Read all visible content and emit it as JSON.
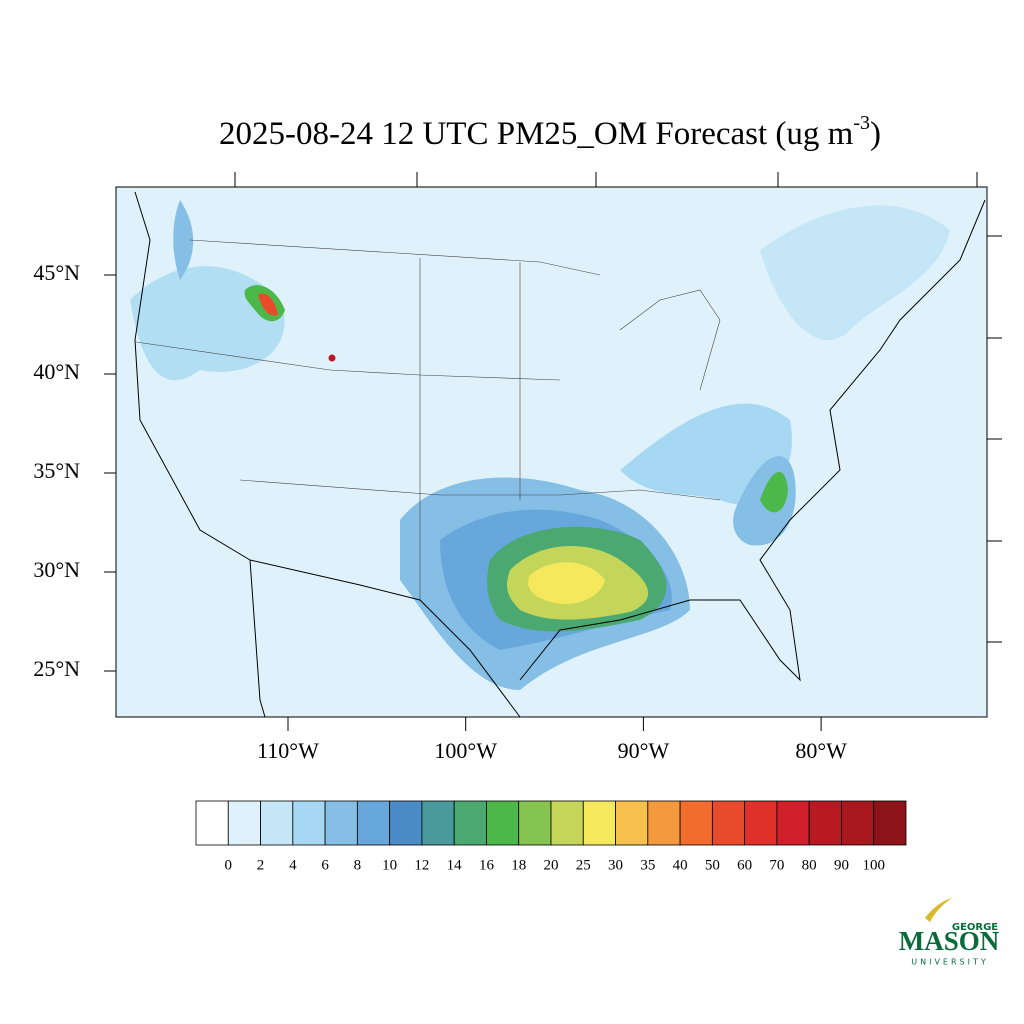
{
  "map": {
    "title": {
      "main": "2025-08-24 12 UTC PM25_OM Forecast (ug m",
      "superscript": "-3",
      "end": ")"
    },
    "lat_labels": [
      {
        "value": 45,
        "label": "45°N"
      },
      {
        "value": 40,
        "label": "40°N"
      },
      {
        "value": 35,
        "label": "35°N"
      },
      {
        "value": 30,
        "label": "30°N"
      },
      {
        "value": 25,
        "label": "25°N"
      }
    ],
    "lon_labels": [
      {
        "value": -110,
        "label": "110°W"
      },
      {
        "value": -100,
        "label": "100°W"
      },
      {
        "value": -90,
        "label": "90°W"
      },
      {
        "value": -80,
        "label": "80°W"
      }
    ],
    "colorbar": {
      "levels": [
        0,
        2,
        4,
        6,
        8,
        10,
        12,
        14,
        16,
        18,
        20,
        25,
        30,
        35,
        40,
        50,
        60,
        70,
        80,
        90,
        100
      ],
      "colors": [
        "#ffffff",
        "#dff2fb",
        "#c4e6f7",
        "#a6d8f3",
        "#86bfe6",
        "#68a7db",
        "#4a8bc8",
        "#4a9a9c",
        "#4aa870",
        "#4cb84a",
        "#86c450",
        "#c4d65a",
        "#f5e85c",
        "#f8c04c",
        "#f59a3c",
        "#f26c2c",
        "#e84a2c",
        "#e0302a",
        "#d01e2a",
        "#b81a24",
        "#a8181e",
        "#8c1418"
      ]
    },
    "logo": {
      "top": "GEORGE",
      "main": "MASON",
      "bottom": "UNIVERSITY"
    }
  }
}
